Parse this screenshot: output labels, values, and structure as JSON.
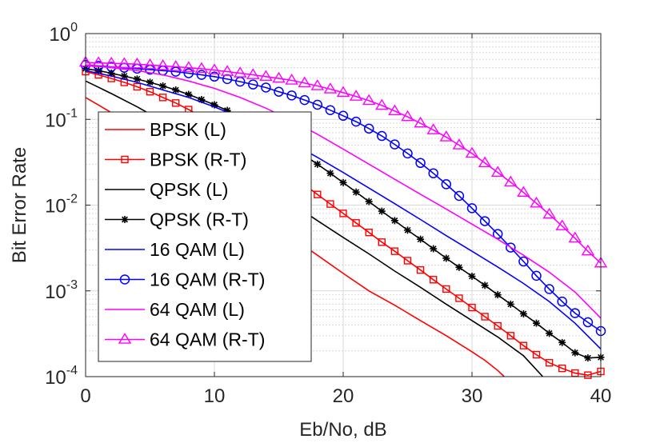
{
  "chart_data": {
    "type": "line",
    "title": "",
    "xlabel": "Eb/No, dB",
    "ylabel": "Bit Error Rate",
    "xlim": [
      0,
      40
    ],
    "ylim": [
      0.0001,
      1
    ],
    "yscale": "log",
    "grid": true,
    "legend_position": "left",
    "x_ticks": [
      {
        "value": 0,
        "label": "0"
      },
      {
        "value": 10,
        "label": "10"
      },
      {
        "value": 20,
        "label": "20"
      },
      {
        "value": 30,
        "label": "30"
      },
      {
        "value": 40,
        "label": "40"
      }
    ],
    "y_ticks": [
      {
        "value": 1,
        "base": "10",
        "exp": "0"
      },
      {
        "value": 0.1,
        "base": "10",
        "exp": "-1"
      },
      {
        "value": 0.01,
        "base": "10",
        "exp": "-2"
      },
      {
        "value": 0.001,
        "base": "10",
        "exp": "-3"
      },
      {
        "value": 0.0001,
        "base": "10",
        "exp": "-4"
      }
    ],
    "series": [
      {
        "name": "BPSK (L)",
        "color": "#ff0000",
        "marker": "none",
        "x": [
          0,
          2,
          4,
          6,
          8,
          10,
          12,
          14,
          16,
          18,
          20,
          22,
          24,
          26,
          28,
          30,
          31,
          32,
          32.5
        ],
        "y": [
          0.18,
          0.12,
          0.08,
          0.05,
          0.03,
          0.018,
          0.011,
          0.0068,
          0.0042,
          0.0026,
          0.0016,
          0.001,
          0.00068,
          0.00045,
          0.0003,
          0.000195,
          0.000155,
          0.000118,
          0.0001
        ]
      },
      {
        "name": "BPSK (R-T)",
        "color": "#ff0000",
        "marker": "square",
        "x": [
          0,
          1,
          2,
          3,
          4,
          5,
          6,
          7,
          8,
          9,
          10,
          11,
          12,
          13,
          14,
          15,
          16,
          17,
          18,
          19,
          20,
          21,
          22,
          23,
          24,
          25,
          26,
          27,
          28,
          29,
          30,
          31,
          32,
          33,
          34,
          35,
          36,
          37,
          38,
          39,
          40
        ],
        "y": [
          0.36,
          0.33,
          0.3,
          0.27,
          0.24,
          0.21,
          0.18,
          0.155,
          0.13,
          0.108,
          0.089,
          0.072,
          0.058,
          0.046,
          0.036,
          0.028,
          0.022,
          0.0172,
          0.0133,
          0.0103,
          0.008,
          0.0062,
          0.0048,
          0.0037,
          0.0029,
          0.00225,
          0.00175,
          0.00135,
          0.00105,
          0.00082,
          0.00064,
          0.0005,
          0.00039,
          0.0003,
          0.00023,
          0.00018,
          0.000145,
          0.000125,
          0.00011,
          0.000104,
          0.000115
        ]
      },
      {
        "name": "QPSK (L)",
        "color": "#000000",
        "marker": "none",
        "x": [
          0,
          2,
          4,
          6,
          8,
          10,
          12,
          14,
          16,
          18,
          20,
          22,
          24,
          26,
          28,
          30,
          32,
          34,
          35.5
        ],
        "y": [
          0.28,
          0.2,
          0.14,
          0.095,
          0.063,
          0.041,
          0.026,
          0.0165,
          0.0105,
          0.0066,
          0.0042,
          0.0027,
          0.0017,
          0.0011,
          0.0007,
          0.00045,
          0.00029,
          0.000175,
          0.0001
        ]
      },
      {
        "name": "QPSK (R-T)",
        "color": "#000000",
        "marker": "star",
        "x": [
          0,
          1,
          2,
          3,
          4,
          5,
          6,
          7,
          8,
          9,
          10,
          11,
          12,
          13,
          14,
          15,
          16,
          17,
          18,
          19,
          20,
          21,
          22,
          23,
          24,
          25,
          26,
          27,
          28,
          29,
          30,
          31,
          32,
          33,
          34,
          35,
          36,
          37,
          38,
          39,
          40
        ],
        "y": [
          0.39,
          0.37,
          0.345,
          0.32,
          0.295,
          0.27,
          0.245,
          0.22,
          0.195,
          0.17,
          0.148,
          0.127,
          0.108,
          0.09,
          0.074,
          0.06,
          0.048,
          0.038,
          0.03,
          0.0235,
          0.0183,
          0.0142,
          0.011,
          0.0085,
          0.0066,
          0.0051,
          0.004,
          0.0031,
          0.0024,
          0.00188,
          0.00148,
          0.00116,
          0.0009,
          0.0007,
          0.00054,
          0.00042,
          0.00032,
          0.00025,
          0.00019,
          0.000165,
          0.000168
        ]
      },
      {
        "name": "16 QAM (L)",
        "color": "#0000ff",
        "marker": "none",
        "x": [
          0,
          2,
          4,
          6,
          8,
          10,
          12,
          14,
          16,
          18,
          20,
          22,
          24,
          26,
          28,
          30,
          32,
          34,
          36,
          38,
          40
        ],
        "y": [
          0.37,
          0.32,
          0.27,
          0.22,
          0.18,
          0.14,
          0.105,
          0.076,
          0.053,
          0.036,
          0.024,
          0.0158,
          0.0104,
          0.0068,
          0.0044,
          0.0029,
          0.0019,
          0.00122,
          0.00075,
          0.00042,
          0.00021
        ]
      },
      {
        "name": "16 QAM (R-T)",
        "color": "#0000ff",
        "marker": "circle",
        "x": [
          0,
          1,
          2,
          3,
          4,
          5,
          6,
          7,
          8,
          9,
          10,
          11,
          12,
          13,
          14,
          15,
          16,
          17,
          18,
          19,
          20,
          21,
          22,
          23,
          24,
          25,
          26,
          27,
          28,
          29,
          30,
          31,
          32,
          33,
          34,
          35,
          36,
          37,
          38,
          39,
          40
        ],
        "y": [
          0.43,
          0.42,
          0.41,
          0.4,
          0.39,
          0.38,
          0.37,
          0.36,
          0.345,
          0.33,
          0.315,
          0.295,
          0.275,
          0.255,
          0.235,
          0.21,
          0.19,
          0.168,
          0.148,
          0.128,
          0.11,
          0.094,
          0.078,
          0.064,
          0.051,
          0.04,
          0.031,
          0.0235,
          0.0175,
          0.0128,
          0.0092,
          0.0065,
          0.0046,
          0.0032,
          0.0022,
          0.0015,
          0.00105,
          0.00075,
          0.00055,
          0.00043,
          0.00034
        ]
      },
      {
        "name": "64 QAM (L)",
        "color": "#ff00ff",
        "marker": "none",
        "x": [
          0,
          2,
          4,
          6,
          8,
          10,
          12,
          14,
          16,
          18,
          20,
          22,
          24,
          26,
          28,
          30,
          32,
          34,
          36,
          38,
          40
        ],
        "y": [
          0.43,
          0.4,
          0.37,
          0.33,
          0.28,
          0.23,
          0.18,
          0.135,
          0.097,
          0.067,
          0.045,
          0.03,
          0.02,
          0.0134,
          0.009,
          0.006,
          0.004,
          0.0026,
          0.00165,
          0.00097,
          0.00048
        ]
      },
      {
        "name": "64 QAM (R-T)",
        "color": "#ff00ff",
        "marker": "triangle",
        "x": [
          0,
          1,
          2,
          3,
          4,
          5,
          6,
          7,
          8,
          9,
          10,
          11,
          12,
          13,
          14,
          15,
          16,
          17,
          18,
          19,
          20,
          21,
          22,
          23,
          24,
          25,
          26,
          27,
          28,
          29,
          30,
          31,
          32,
          33,
          34,
          35,
          36,
          37,
          38,
          39,
          40
        ],
        "y": [
          0.46,
          0.455,
          0.45,
          0.445,
          0.44,
          0.43,
          0.42,
          0.41,
          0.4,
          0.39,
          0.375,
          0.36,
          0.345,
          0.33,
          0.315,
          0.3,
          0.285,
          0.265,
          0.245,
          0.225,
          0.205,
          0.185,
          0.165,
          0.145,
          0.125,
          0.107,
          0.09,
          0.075,
          0.062,
          0.05,
          0.04,
          0.031,
          0.024,
          0.0185,
          0.014,
          0.0105,
          0.0078,
          0.0057,
          0.0041,
          0.0029,
          0.0021
        ]
      }
    ]
  }
}
